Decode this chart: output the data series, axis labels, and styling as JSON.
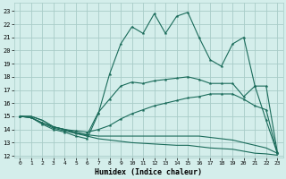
{
  "xlabel": "Humidex (Indice chaleur)",
  "bg_color": "#d4eeeb",
  "grid_color": "#a8ccc8",
  "line_color": "#1a6b5a",
  "xlim": [
    -0.5,
    23.5
  ],
  "ylim": [
    11.9,
    23.6
  ],
  "yticks": [
    12,
    13,
    14,
    15,
    16,
    17,
    18,
    19,
    20,
    21,
    22,
    23
  ],
  "xticks": [
    0,
    1,
    2,
    3,
    4,
    5,
    6,
    7,
    8,
    9,
    10,
    11,
    12,
    13,
    14,
    15,
    16,
    17,
    18,
    19,
    20,
    21,
    22,
    23
  ],
  "line_min_x": [
    0,
    1,
    2,
    3,
    4,
    5,
    6,
    7,
    8,
    9,
    10,
    11,
    12,
    13,
    14,
    15,
    16,
    17,
    18,
    19,
    20,
    21,
    22,
    23
  ],
  "line_min_y": [
    15.0,
    15.0,
    14.7,
    14.2,
    14.0,
    13.7,
    13.5,
    13.3,
    13.2,
    13.1,
    13.0,
    12.95,
    12.9,
    12.85,
    12.8,
    12.8,
    12.7,
    12.6,
    12.55,
    12.5,
    12.35,
    12.2,
    12.15,
    12.05
  ],
  "line_low_x": [
    0,
    1,
    2,
    3,
    4,
    5,
    6,
    7,
    8,
    9,
    10,
    11,
    12,
    13,
    14,
    15,
    16,
    17,
    18,
    19,
    20,
    21,
    22,
    23
  ],
  "line_low_y": [
    15.0,
    15.0,
    14.7,
    14.2,
    14.0,
    13.8,
    13.6,
    13.5,
    13.5,
    13.5,
    13.5,
    13.5,
    13.5,
    13.5,
    13.5,
    13.5,
    13.5,
    13.4,
    13.3,
    13.2,
    13.0,
    12.8,
    12.6,
    12.2
  ],
  "line_mid_x": [
    0,
    1,
    2,
    3,
    4,
    5,
    6,
    7,
    8,
    9,
    10,
    11,
    12,
    13,
    14,
    15,
    16,
    17,
    18,
    19,
    20,
    21,
    22,
    23
  ],
  "line_mid_y": [
    15.0,
    14.9,
    14.5,
    14.2,
    14.0,
    13.9,
    13.8,
    14.0,
    14.3,
    14.8,
    15.2,
    15.5,
    15.8,
    16.0,
    16.2,
    16.4,
    16.5,
    16.7,
    16.7,
    16.7,
    16.3,
    15.8,
    15.5,
    12.2
  ],
  "line_upper_x": [
    0,
    1,
    2,
    3,
    4,
    5,
    6,
    7,
    8,
    9,
    10,
    11,
    12,
    13,
    14,
    15,
    16,
    17,
    18,
    19,
    20,
    21,
    22,
    23
  ],
  "line_upper_y": [
    15.0,
    14.9,
    14.5,
    14.1,
    13.9,
    13.7,
    13.6,
    15.3,
    16.3,
    17.3,
    17.6,
    17.5,
    17.7,
    17.8,
    17.9,
    18.0,
    17.8,
    17.5,
    17.5,
    17.5,
    16.5,
    17.3,
    17.3,
    12.3
  ],
  "line_main_x": [
    0,
    1,
    2,
    3,
    4,
    5,
    6,
    7,
    8,
    9,
    10,
    11,
    12,
    13,
    14,
    15,
    16,
    17,
    18,
    19,
    20,
    21,
    22,
    23
  ],
  "line_main_y": [
    15.0,
    14.9,
    14.4,
    14.0,
    13.8,
    13.5,
    13.3,
    15.2,
    18.2,
    20.5,
    21.8,
    21.3,
    22.8,
    21.3,
    22.6,
    22.9,
    21.0,
    19.3,
    18.8,
    20.5,
    21.0,
    17.3,
    14.7,
    12.2
  ]
}
